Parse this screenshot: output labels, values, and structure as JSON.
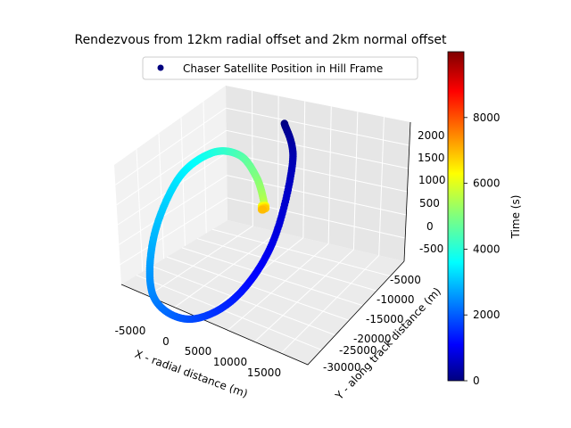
{
  "chart_data": {
    "type": "scatter3d",
    "title": "Rendezvous from 12km radial offset and 2km normal offset",
    "legend": {
      "entries": [
        "Chaser Satellite Position in Hill Frame"
      ],
      "marker_color": "#00007f",
      "placement": "top-center"
    },
    "xlabel": "X - radial distance (m)",
    "ylabel": "Y - along track distance (m)",
    "zlabel": "",
    "x_ticks": [
      "-5000",
      "0",
      "5000",
      "10000",
      "15000"
    ],
    "y_ticks": [
      "-5000",
      "-10000",
      "-15000",
      "-20000",
      "-25000",
      "-30000"
    ],
    "z_ticks": [
      "2000",
      "1500",
      "1000",
      "500",
      "0",
      "-500"
    ],
    "xlim": [
      -8000,
      20000
    ],
    "ylim": [
      2000,
      -32000
    ],
    "zlim": [
      -800,
      2200
    ],
    "grid": true,
    "colorbar": {
      "label": "Time (s)",
      "ticks": [
        "0",
        "2000",
        "4000",
        "6000",
        "8000"
      ],
      "range": [
        0,
        10000
      ],
      "colormap": "jet"
    },
    "series": [
      {
        "name": "Chaser Satellite Position in Hill Frame",
        "t": [
          0,
          500,
          1000,
          1500,
          2000,
          2500,
          3000,
          3500,
          4000,
          4500,
          5000,
          5500,
          6000
        ],
        "x": [
          12000,
          18500,
          19000,
          15000,
          7000,
          -1000,
          -5000,
          -4800,
          -1000,
          3000,
          5500,
          6500,
          6200
        ],
        "y": [
          0,
          -3000,
          -9000,
          -17000,
          -24000,
          -28000,
          -25000,
          -18000,
          -11000,
          -5500,
          -2000,
          -300,
          0
        ],
        "z": [
          2000,
          1500,
          0,
          -1000,
          -1400,
          -1000,
          0,
          1000,
          1400,
          1250,
          700,
          150,
          0
        ]
      }
    ]
  }
}
